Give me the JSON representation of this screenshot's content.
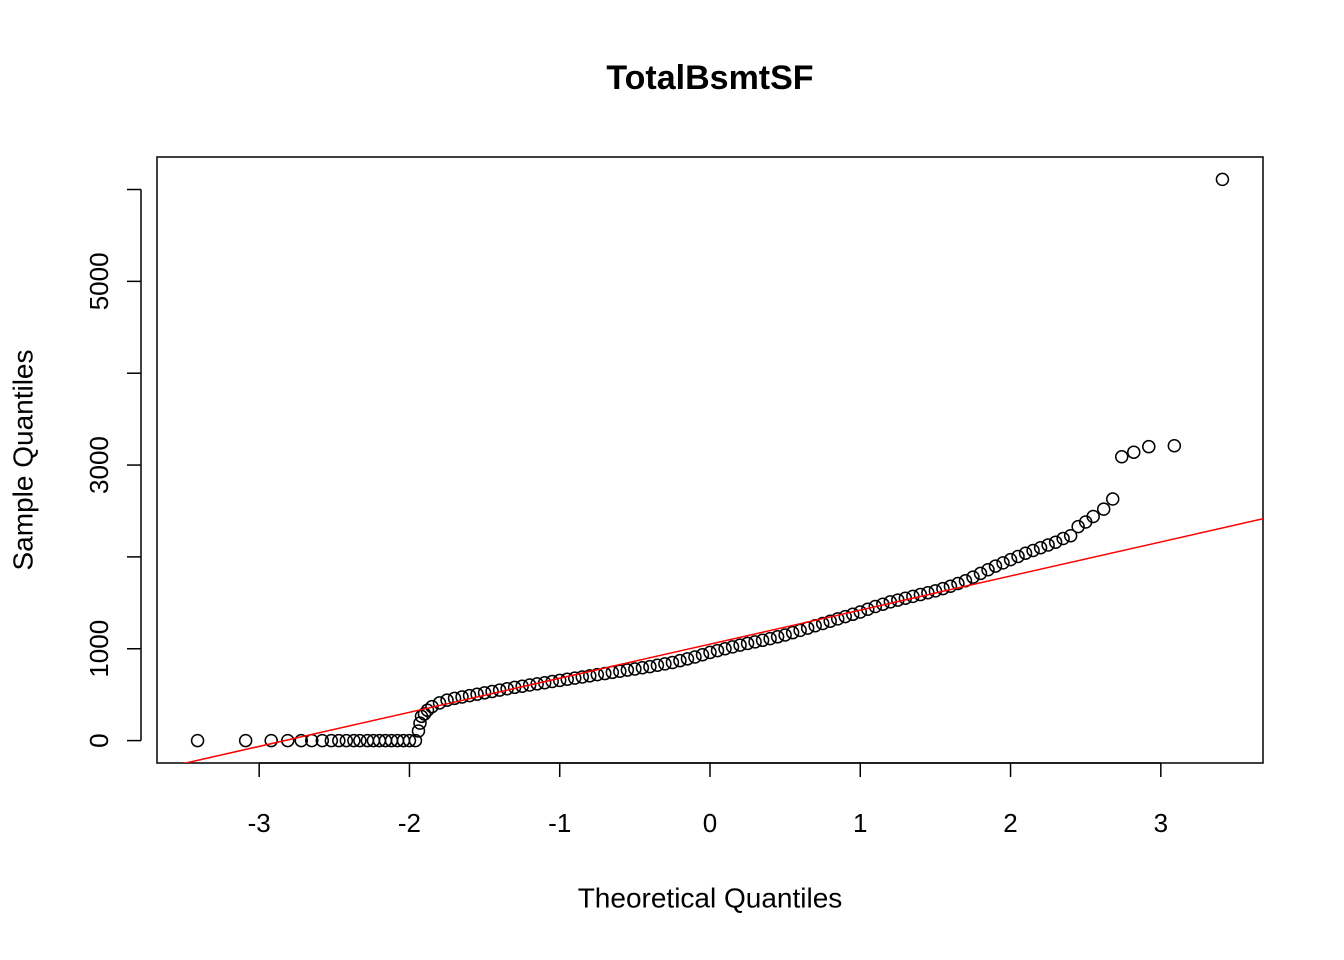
{
  "chart_data": {
    "type": "scatter",
    "title": "TotalBsmtSF",
    "x_label": "Theoretical Quantiles",
    "y_label": "Sample Quantiles",
    "xlim": [
      -3.68,
      3.68
    ],
    "ylim": [
      -244,
      6354
    ],
    "xticks": [
      -3,
      -2,
      -1,
      0,
      1,
      2,
      3
    ],
    "yticks": [
      0,
      1000,
      3000,
      5000
    ],
    "yticks_unlabeled": [
      2000,
      4000,
      6000
    ],
    "point_color": "#000000",
    "reference_line": {
      "intercept": 1050,
      "slope": 371,
      "color": "#ff0000"
    },
    "x": [
      -3.41,
      -3.09,
      -2.92,
      -2.81,
      -2.72,
      -2.65,
      -2.58,
      -2.52,
      -2.47,
      -2.42,
      -2.37,
      -2.33,
      -2.28,
      -2.24,
      -2.2,
      -2.16,
      -2.12,
      -2.08,
      -2.04,
      -2.0,
      -1.96,
      -1.94,
      -1.93,
      -1.92,
      -1.9,
      -1.88,
      -1.85,
      -1.8,
      -1.75,
      -1.7,
      -1.65,
      -1.6,
      -1.55,
      -1.5,
      -1.45,
      -1.4,
      -1.35,
      -1.3,
      -1.25,
      -1.2,
      -1.15,
      -1.1,
      -1.05,
      -1.0,
      -0.95,
      -0.9,
      -0.85,
      -0.8,
      -0.75,
      -0.7,
      -0.65,
      -0.6,
      -0.55,
      -0.5,
      -0.45,
      -0.4,
      -0.35,
      -0.3,
      -0.25,
      -0.2,
      -0.15,
      -0.1,
      -0.05,
      0,
      0.05,
      0.1,
      0.15,
      0.2,
      0.25,
      0.3,
      0.35,
      0.4,
      0.45,
      0.5,
      0.55,
      0.6,
      0.65,
      0.7,
      0.75,
      0.8,
      0.85,
      0.9,
      0.95,
      1.0,
      1.05,
      1.1,
      1.15,
      1.2,
      1.25,
      1.3,
      1.35,
      1.4,
      1.45,
      1.5,
      1.55,
      1.6,
      1.65,
      1.7,
      1.75,
      1.8,
      1.85,
      1.9,
      1.95,
      2.0,
      2.05,
      2.1,
      2.15,
      2.2,
      2.25,
      2.3,
      2.35,
      2.4,
      2.45,
      2.5,
      2.55,
      2.62,
      2.68,
      2.74,
      2.82,
      2.92,
      3.09,
      3.41
    ],
    "values": [
      0,
      0,
      0,
      0,
      0,
      0,
      0,
      0,
      0,
      0,
      0,
      0,
      0,
      0,
      0,
      0,
      0,
      0,
      0,
      0,
      0,
      105,
      190,
      264,
      290,
      330,
      370,
      410,
      440,
      460,
      475,
      490,
      505,
      520,
      535,
      550,
      565,
      580,
      592,
      605,
      618,
      630,
      643,
      655,
      668,
      680,
      693,
      705,
      718,
      730,
      743,
      755,
      768,
      780,
      793,
      805,
      820,
      835,
      850,
      870,
      890,
      910,
      935,
      960,
      980,
      1000,
      1020,
      1040,
      1058,
      1075,
      1092,
      1110,
      1130,
      1150,
      1175,
      1200,
      1225,
      1250,
      1275,
      1300,
      1325,
      1350,
      1375,
      1400,
      1430,
      1460,
      1485,
      1510,
      1530,
      1550,
      1570,
      1590,
      1610,
      1630,
      1655,
      1680,
      1710,
      1740,
      1780,
      1820,
      1860,
      1900,
      1935,
      1970,
      2005,
      2040,
      2070,
      2100,
      2130,
      2160,
      2200,
      2230,
      2330,
      2380,
      2440,
      2520,
      2630,
      3090,
      3140,
      3200,
      3210,
      6110
    ]
  }
}
